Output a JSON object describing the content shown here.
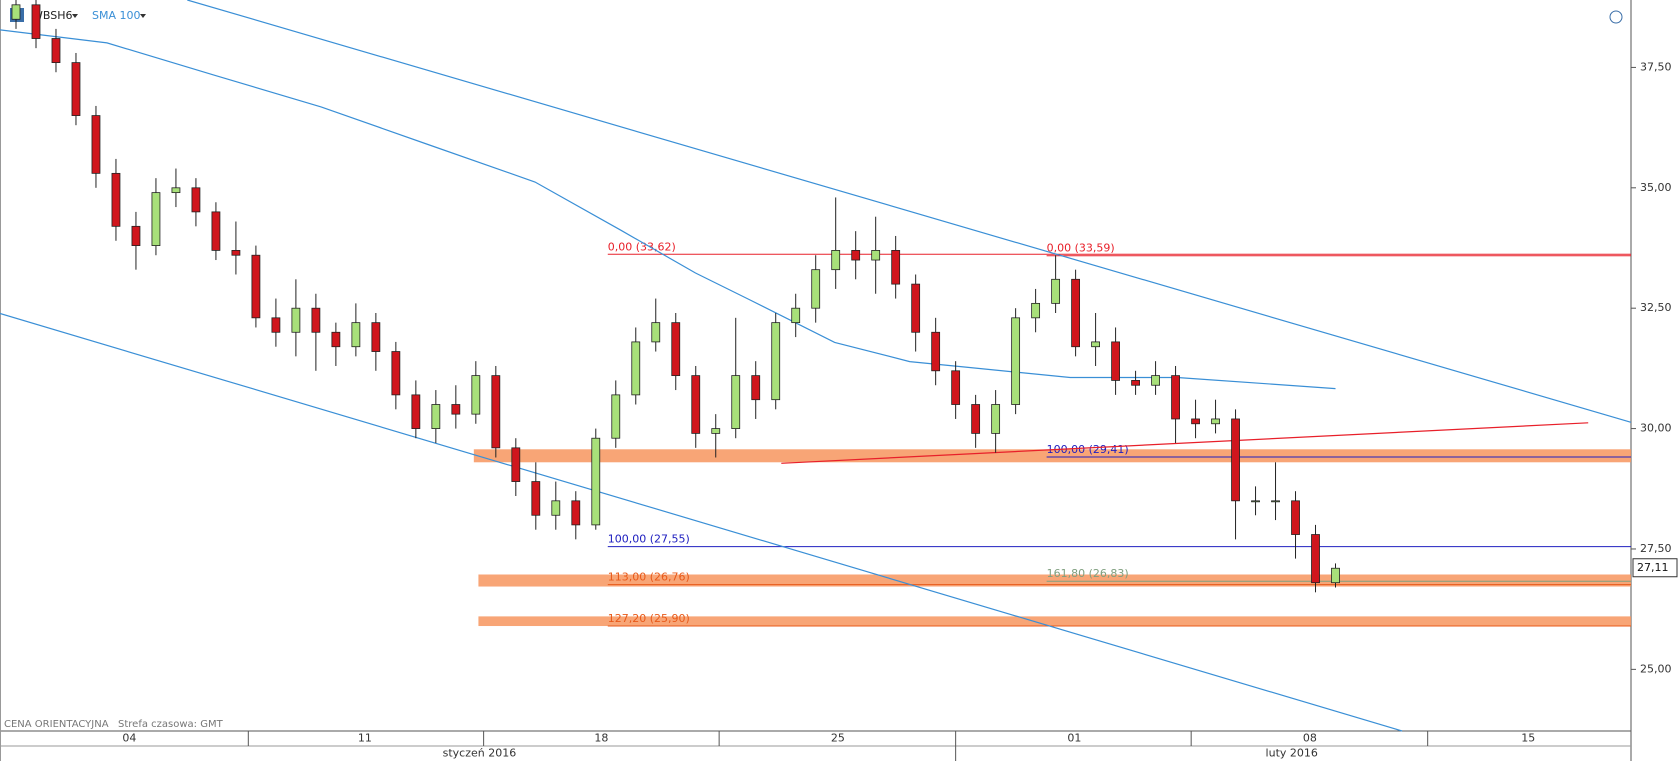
{
  "chart_data": {
    "type": "candlestick",
    "symbol": "WBSH6",
    "indicator": "SMA 100",
    "footer": [
      "CENA ORIENTACYJNA",
      "Strefa czasowa: GMT"
    ],
    "xlim": [
      -0.8,
      80.78
    ],
    "ylim": [
      23.72,
      38.9
    ],
    "yticks": [
      {
        "value": 25,
        "label": "25,00"
      },
      {
        "value": 27.5,
        "label": "27,50"
      },
      {
        "value": 30,
        "label": "30,00"
      },
      {
        "value": 32.5,
        "label": "32,50"
      },
      {
        "value": 35,
        "label": "35,00"
      },
      {
        "value": 37.5,
        "label": "37,50"
      }
    ],
    "xticks": [
      {
        "value": 5.67,
        "label": "04"
      },
      {
        "value": 17.45,
        "label": "11"
      },
      {
        "value": 29.28,
        "label": "18"
      },
      {
        "value": 41.11,
        "label": "25"
      },
      {
        "value": 52.94,
        "label": "01"
      },
      {
        "value": 64.72,
        "label": "08"
      },
      {
        "value": 75.64,
        "label": "15"
      }
    ],
    "x_dividers": [
      11.62,
      23.39,
      35.17,
      47.0,
      58.78,
      70.61
    ],
    "month_ticks": [
      {
        "value": 23.18,
        "label": "styczeń 2016"
      },
      {
        "value": 63.81,
        "label": "luty 2016"
      }
    ],
    "up_color": "#a8e07a",
    "down_color": "#d0161d",
    "x": [
      0,
      1,
      2,
      3,
      4,
      5,
      6,
      7,
      8,
      9,
      10,
      11,
      12,
      13,
      14,
      15,
      16,
      17,
      18,
      19,
      20,
      21,
      22,
      23,
      24,
      25,
      26,
      27,
      28,
      29,
      30,
      31,
      32,
      33,
      34,
      35,
      36,
      37,
      38,
      39,
      40,
      41,
      42,
      43,
      44,
      45,
      46,
      47,
      48,
      49,
      50,
      51,
      52,
      53,
      54,
      55,
      56,
      57,
      58,
      59,
      60,
      61,
      62,
      63,
      64,
      65,
      66
    ],
    "open": [
      38.5,
      38.8,
      38.1,
      37.6,
      36.5,
      35.3,
      34.2,
      33.8,
      34.9,
      35.0,
      34.5,
      33.7,
      33.6,
      32.3,
      32.0,
      32.5,
      32.0,
      31.7,
      32.2,
      31.6,
      30.7,
      30.0,
      30.5,
      30.3,
      31.1,
      29.6,
      28.9,
      28.2,
      28.5,
      28.0,
      29.8,
      30.7,
      31.8,
      32.2,
      31.1,
      29.9,
      30.0,
      31.1,
      30.6,
      32.2,
      32.5,
      33.3,
      33.7,
      33.5,
      33.7,
      33.0,
      32.0,
      31.2,
      30.5,
      29.9,
      30.5,
      32.3,
      32.6,
      33.1,
      31.7,
      31.8,
      31.0,
      30.9,
      31.1,
      30.2,
      30.1,
      30.2,
      28.5,
      28.5,
      28.5,
      27.8,
      26.8
    ],
    "high": [
      39.0,
      39.0,
      38.3,
      37.8,
      36.7,
      35.6,
      34.5,
      35.2,
      35.4,
      35.2,
      34.7,
      34.3,
      33.8,
      32.7,
      33.1,
      32.8,
      32.2,
      32.6,
      32.4,
      31.8,
      31.0,
      30.8,
      30.9,
      31.4,
      31.3,
      29.8,
      29.3,
      28.9,
      28.7,
      30.0,
      31.0,
      32.1,
      32.7,
      32.4,
      31.3,
      30.3,
      32.3,
      31.4,
      32.4,
      32.8,
      33.6,
      34.8,
      34.1,
      34.4,
      34.0,
      33.2,
      32.3,
      31.4,
      30.7,
      30.8,
      32.5,
      32.9,
      33.6,
      33.3,
      32.4,
      32.1,
      31.2,
      31.4,
      31.3,
      30.6,
      30.6,
      30.4,
      28.8,
      29.3,
      28.7,
      28.0,
      27.2
    ],
    "low": [
      38.3,
      37.9,
      37.4,
      36.3,
      35.0,
      33.9,
      33.3,
      33.6,
      34.6,
      34.2,
      33.5,
      33.2,
      32.1,
      31.7,
      31.5,
      31.2,
      31.3,
      31.5,
      31.2,
      30.4,
      29.8,
      29.7,
      30.0,
      30.1,
      29.4,
      28.6,
      27.9,
      27.9,
      27.7,
      27.9,
      29.6,
      30.5,
      31.6,
      30.8,
      29.6,
      29.4,
      29.8,
      30.2,
      30.4,
      31.9,
      32.2,
      32.9,
      33.1,
      32.8,
      32.7,
      31.6,
      30.9,
      30.2,
      29.6,
      29.5,
      30.3,
      32.0,
      32.4,
      31.5,
      31.3,
      30.7,
      30.7,
      30.7,
      29.7,
      29.8,
      29.9,
      27.7,
      28.2,
      28.1,
      27.3,
      26.6,
      26.7
    ],
    "close": [
      38.8,
      38.1,
      37.6,
      36.5,
      35.3,
      34.2,
      33.8,
      34.9,
      35.0,
      34.5,
      33.7,
      33.6,
      32.3,
      32.0,
      32.5,
      32.0,
      31.7,
      32.2,
      31.6,
      30.7,
      30.0,
      30.5,
      30.3,
      31.1,
      29.6,
      28.9,
      28.2,
      28.5,
      28.0,
      29.8,
      30.7,
      31.8,
      32.2,
      31.1,
      29.9,
      30.0,
      31.1,
      30.6,
      32.2,
      32.5,
      33.3,
      33.7,
      33.5,
      33.7,
      33.0,
      32.0,
      31.2,
      30.5,
      29.9,
      30.5,
      32.3,
      32.6,
      33.1,
      31.7,
      31.8,
      31.0,
      30.9,
      31.1,
      30.2,
      30.1,
      30.2,
      28.5,
      28.5,
      28.5,
      27.8,
      26.8,
      27.1
    ],
    "sma": {
      "color": "#3a8fd6",
      "x": [
        -0.8,
        4.55,
        9.9,
        15.26,
        20.61,
        25.96,
        30.25,
        33.99,
        36.67,
        40.95,
        44.7,
        47.38,
        52.73,
        58.08,
        66.0
      ],
      "values": [
        38.28,
        38.01,
        37.34,
        36.68,
        35.9,
        35.12,
        34.12,
        33.23,
        32.68,
        31.79,
        31.39,
        31.28,
        31.06,
        31.06,
        30.83
      ]
    },
    "trendlines": [
      {
        "color": "#3a8fd6",
        "x": [
          8.57,
          80.78
        ],
        "values": [
          38.9,
          30.13
        ]
      },
      {
        "color": "#3a8fd6",
        "x": [
          -0.8,
          69.33
        ],
        "values": [
          32.39,
          23.72
        ]
      },
      {
        "color": "#e8202a",
        "x": [
          38.28,
          78.64
        ],
        "values": [
          29.28,
          30.12
        ]
      }
    ],
    "bands": [
      {
        "low": 29.3,
        "high": 29.57,
        "start": 22.9
      },
      {
        "low": 26.72,
        "high": 26.97,
        "start": 23.13
      },
      {
        "low": 25.9,
        "high": 26.1,
        "start": 23.13
      }
    ],
    "levels": [
      {
        "label": "0,00 (33,62)",
        "value": 33.62,
        "start": 29.6,
        "color": "#e8202a"
      },
      {
        "label": "0,00 (33,59)",
        "value": 33.59,
        "start": 51.55,
        "color": "#e8202a"
      },
      {
        "label": "100,00 (29,41)",
        "value": 29.41,
        "start": 51.55,
        "color": "#2020c0"
      },
      {
        "label": "100,00 (27,55)",
        "value": 27.55,
        "start": 29.6,
        "color": "#2020c0"
      },
      {
        "label": "161,80 (26,83)",
        "value": 26.83,
        "start": 51.55,
        "color": "#7f9f7f"
      },
      {
        "label": "113,00 (26,76)",
        "value": 26.76,
        "start": 29.6,
        "color": "#e85a1a"
      },
      {
        "label": "127,20 (25,90)",
        "value": 25.9,
        "start": 29.6,
        "color": "#e85a1a"
      }
    ],
    "last": {
      "value": 27.11,
      "label": "27,11"
    }
  }
}
